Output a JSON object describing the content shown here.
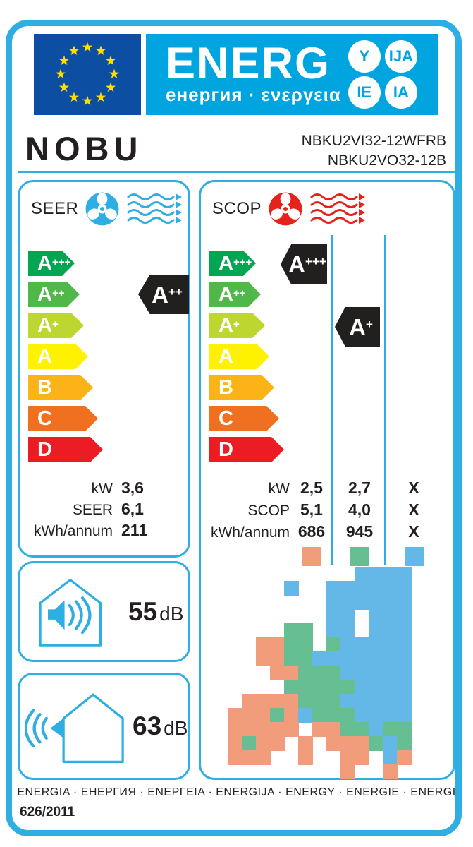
{
  "header": {
    "energ_title": "ENERG",
    "energ_subtitle": "енергия · ενεργεια",
    "suffix_circles": [
      "Y",
      "IJA",
      "IE",
      "IA"
    ],
    "brand": "NOBU",
    "model_indoor": "NBKU2VI32-12WFRB",
    "model_outdoor": "NBKU2VO32-12B"
  },
  "energy_classes": [
    {
      "letter": "A",
      "sup": "+++",
      "color": "#00A651"
    },
    {
      "letter": "A",
      "sup": "++",
      "color": "#50B848"
    },
    {
      "letter": "A",
      "sup": "+",
      "color": "#BED630"
    },
    {
      "letter": "A",
      "sup": "",
      "color": "#FFF200"
    },
    {
      "letter": "B",
      "sup": "",
      "color": "#FBB317"
    },
    {
      "letter": "C",
      "sup": "",
      "color": "#F1701F"
    },
    {
      "letter": "D",
      "sup": "",
      "color": "#EC1C24"
    }
  ],
  "seer_panel": {
    "label": "SEER",
    "rating": {
      "letter": "A",
      "sup": "++"
    },
    "rows": [
      {
        "label": "kW",
        "value": "3,6"
      },
      {
        "label": "SEER",
        "value": "6,1"
      },
      {
        "label": "kWh/annum",
        "value": "211"
      }
    ]
  },
  "scop_panel": {
    "label": "SCOP",
    "rating_average": {
      "letter": "A",
      "sup": "+++"
    },
    "rating_cold": {
      "letter": "A",
      "sup": "+"
    },
    "rows": [
      {
        "label": "kW",
        "values": [
          "2,5",
          "2,7",
          "X"
        ]
      },
      {
        "label": "SCOP",
        "values": [
          "5,1",
          "4,0",
          "X"
        ]
      },
      {
        "label": "kWh/annum",
        "values": [
          "686",
          "945",
          "X"
        ]
      }
    ],
    "zone_colors": {
      "warm": "#F19C7B",
      "average": "#66BF93",
      "cold": "#63B8E8"
    }
  },
  "noise_indoor": {
    "value": "55",
    "unit": "dB"
  },
  "noise_outdoor": {
    "value": "63",
    "unit": "dB"
  },
  "footer": {
    "languages": "ENERGIA · ЕНЕРГИЯ · ΕΝΕΡΓΕΙΑ · ENERGIJA · ENERGY · ENERGIE · ENERGI",
    "regulation": "626/2011"
  },
  "colors": {
    "accent_cyan": "#2FAEE3",
    "header_blue": "#00A5E0",
    "eu_flag_blue": "#0B4EA2",
    "eu_star_yellow": "#FFDD00",
    "indicator_black": "#221F1F",
    "text": "#231F20"
  },
  "europe_map": {
    "cell": 20,
    "colors": {
      "S": "#F19C7B",
      "G": "#66BF93",
      "B": "#63B8E8"
    },
    "grid": [
      ".........BBBB..",
      "....B..BBBBBB..",
      ".......BBBBBB..",
      ".......BB.BBB..",
      "....GG.BB.BBB..",
      "..SSGG.GBBBBB..",
      "..SSGGBBBBBBB..",
      "...SSGGGBBBBB..",
      "....GGGGGBBBB..",
      ".SSSSGGGBBBBB..",
      "SSSGSBGGGBBBB..",
      "SSSSS.SSGGBGG..",
      "SGSS.S.SSSGBG..",
      "SSS..S..SS.BS..",
      "........S..S..."
    ]
  }
}
